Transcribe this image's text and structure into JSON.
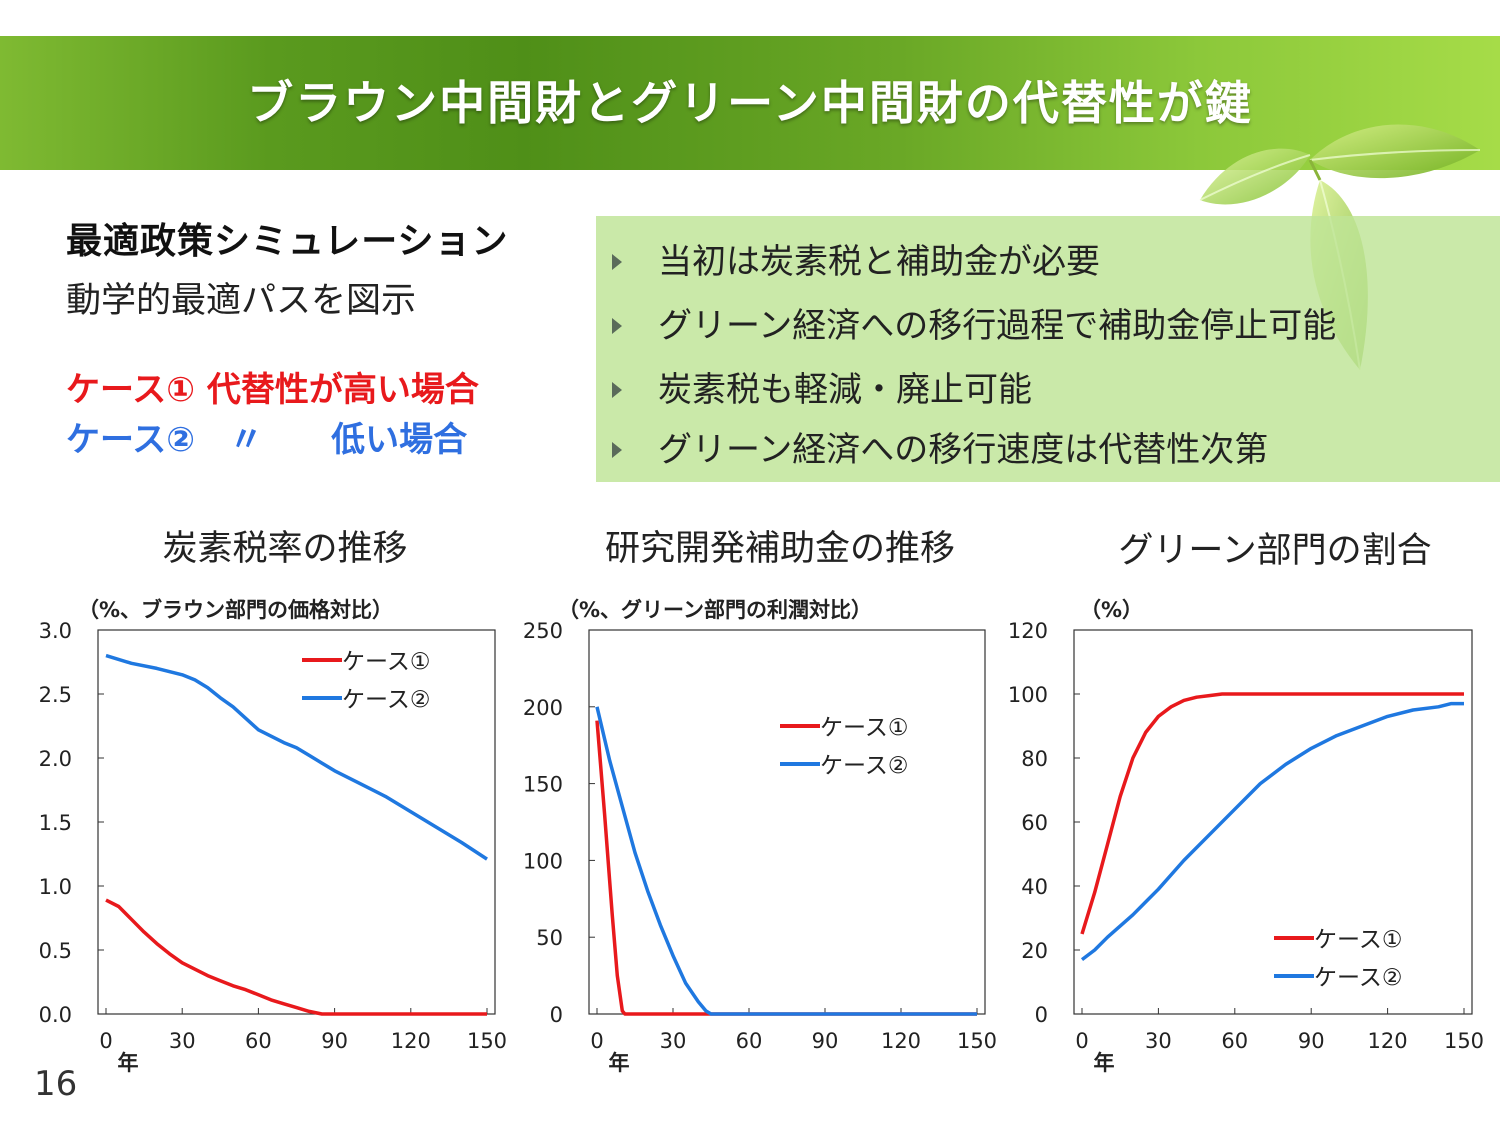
{
  "header": {
    "title": "ブラウン中間財とグリーン中間財の代替性が鍵"
  },
  "left_panel": {
    "title": "最適政策シミュレーション",
    "subtitle": "動学的最適パスを図示",
    "case1": "ケース① 代替性が高い場合",
    "case2": "ケース②　〃　　低い場合"
  },
  "bullets": [
    "当初は炭素税と補助金が必要",
    "グリーン経済への移行過程で補助金停止可能",
    "炭素税も軽減・廃止可能",
    "グリーン経済への移行速度は代替性次第"
  ],
  "colors": {
    "case1": "#e8191c",
    "case2": "#1f78e0",
    "banner": "#5a9a1e"
  },
  "page_number": "16",
  "chart_data": [
    {
      "type": "line",
      "title": "炭素税率の推移",
      "unit": "（%、ブラウン部門の価格対比）",
      "xlabel": "年",
      "x_ticks": [
        "0",
        "30",
        "60",
        "90",
        "120",
        "150"
      ],
      "y_ticks": [
        "0.0",
        "0.5",
        "1.0",
        "1.5",
        "2.0",
        "2.5",
        "3.0"
      ],
      "xlim": [
        0,
        150
      ],
      "ylim": [
        0,
        3.0
      ],
      "legend": "top-right",
      "series": [
        {
          "name": "ケース①",
          "x": [
            0,
            5,
            10,
            15,
            20,
            25,
            30,
            35,
            40,
            45,
            50,
            55,
            60,
            65,
            70,
            75,
            80,
            85,
            90,
            100,
            110,
            120,
            130,
            140,
            150
          ],
          "y": [
            0.89,
            0.84,
            0.74,
            0.64,
            0.55,
            0.47,
            0.4,
            0.35,
            0.3,
            0.26,
            0.22,
            0.19,
            0.15,
            0.11,
            0.08,
            0.05,
            0.02,
            0.0,
            0.0,
            0.0,
            0.0,
            0.0,
            0.0,
            0.0,
            0.0
          ]
        },
        {
          "name": "ケース②",
          "x": [
            0,
            10,
            20,
            30,
            35,
            40,
            45,
            50,
            55,
            60,
            65,
            70,
            75,
            80,
            85,
            90,
            100,
            110,
            120,
            130,
            140,
            150
          ],
          "y": [
            2.8,
            2.74,
            2.7,
            2.65,
            2.61,
            2.55,
            2.47,
            2.4,
            2.31,
            2.22,
            2.17,
            2.12,
            2.08,
            2.02,
            1.96,
            1.9,
            1.8,
            1.7,
            1.58,
            1.46,
            1.34,
            1.21
          ]
        }
      ]
    },
    {
      "type": "line",
      "title": "研究開発補助金の推移",
      "unit": "（%、グリーン部門の利潤対比）",
      "xlabel": "年",
      "x_ticks": [
        "0",
        "30",
        "60",
        "90",
        "120",
        "150"
      ],
      "y_ticks": [
        "0",
        "50",
        "100",
        "150",
        "200",
        "250"
      ],
      "xlim": [
        0,
        150
      ],
      "ylim": [
        0,
        250
      ],
      "legend": "top-right",
      "series": [
        {
          "name": "ケース①",
          "x": [
            0,
            3,
            6,
            8,
            10,
            11,
            15,
            30,
            60,
            90,
            120,
            150
          ],
          "y": [
            191,
            130,
            65,
            25,
            2,
            0,
            0,
            0,
            0,
            0,
            0,
            0
          ]
        },
        {
          "name": "ケース②",
          "x": [
            0,
            5,
            10,
            15,
            20,
            25,
            30,
            35,
            40,
            43,
            45,
            60,
            90,
            120,
            150
          ],
          "y": [
            200,
            165,
            135,
            105,
            80,
            58,
            38,
            20,
            8,
            2,
            0,
            0,
            0,
            0,
            0
          ]
        }
      ]
    },
    {
      "type": "line",
      "title": "グリーン部門の割合",
      "unit": "（%）",
      "xlabel": "年",
      "x_ticks": [
        "0",
        "30",
        "60",
        "90",
        "120",
        "150"
      ],
      "y_ticks": [
        "0",
        "20",
        "40",
        "60",
        "80",
        "100",
        "120"
      ],
      "xlim": [
        0,
        150
      ],
      "ylim": [
        0,
        120
      ],
      "legend": "bottom-right",
      "series": [
        {
          "name": "ケース①",
          "x": [
            0,
            5,
            10,
            15,
            20,
            25,
            30,
            35,
            40,
            45,
            50,
            55,
            60,
            90,
            120,
            150
          ],
          "y": [
            25,
            38,
            53,
            68,
            80,
            88,
            93,
            96,
            98,
            99,
            99.5,
            100,
            100,
            100,
            100,
            100
          ]
        },
        {
          "name": "ケース②",
          "x": [
            0,
            5,
            10,
            20,
            30,
            40,
            50,
            60,
            70,
            80,
            90,
            100,
            110,
            120,
            130,
            140,
            145,
            150
          ],
          "y": [
            17,
            20,
            24,
            31,
            39,
            48,
            56,
            64,
            72,
            78,
            83,
            87,
            90,
            93,
            95,
            96,
            97,
            97
          ]
        }
      ]
    }
  ]
}
